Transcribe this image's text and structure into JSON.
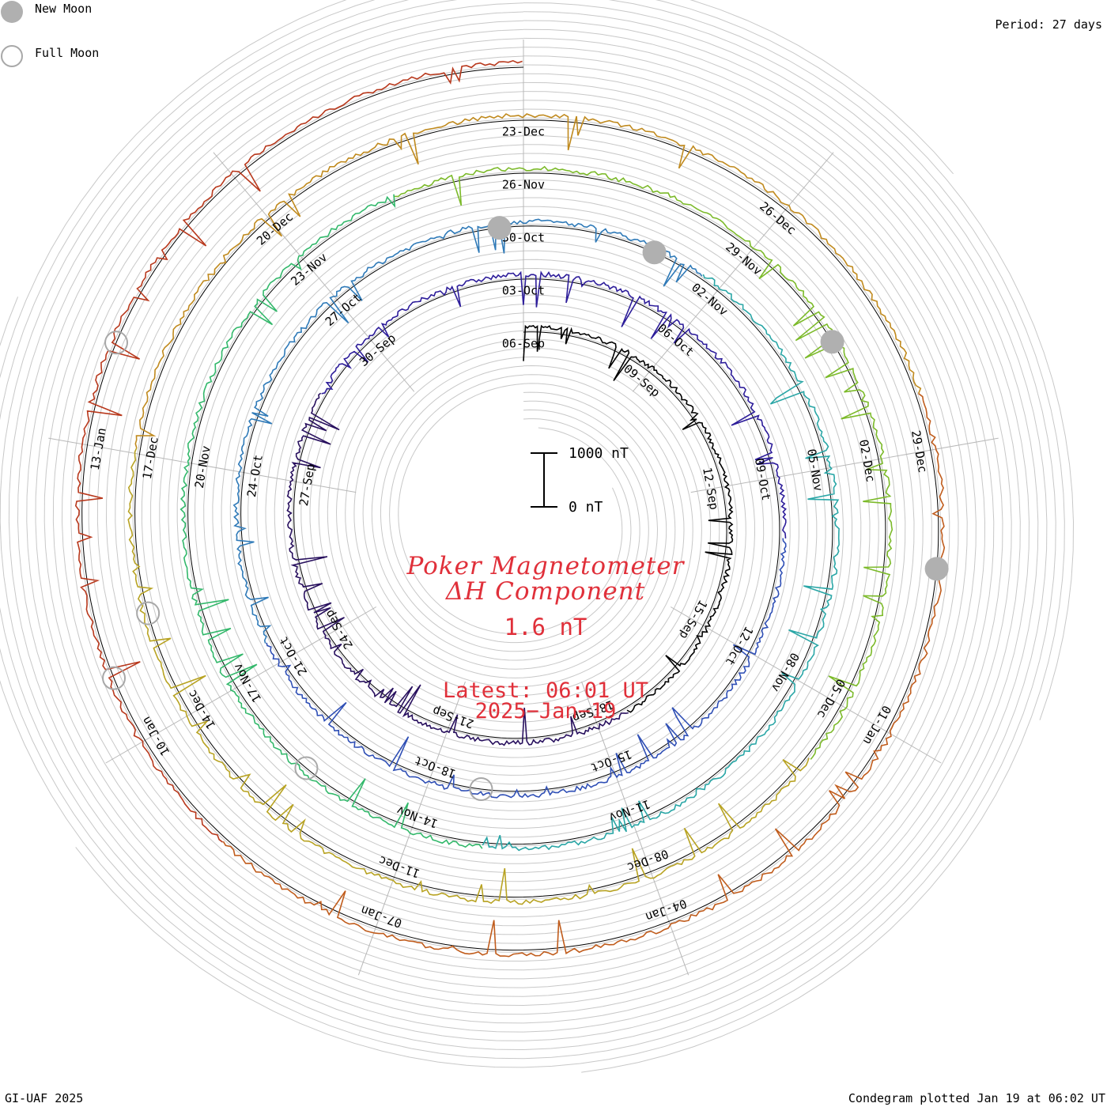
{
  "header": {
    "legend": [
      {
        "label": "New Moon",
        "icon": "new-moon-icon"
      },
      {
        "label": "Full Moon",
        "icon": "full-moon-icon"
      }
    ],
    "period": "Period: 27 days"
  },
  "center": {
    "title_line1": "Poker Magnetometer",
    "title_line2": "ΔH Component",
    "value": "1.6 nT",
    "latest_line1": "Latest: 06:01 UT",
    "latest_line2": "2025−Jan−19"
  },
  "scale": {
    "top_label": "1000 nT",
    "bottom_label": "0 nT"
  },
  "footer": {
    "left": "GI-UAF 2025",
    "right": "Condegram plotted Jan 19 at 06:02 UT"
  },
  "chart_data": {
    "type": "line",
    "title": "Poker Magnetometer ΔH Component",
    "subtitle": "Condegram, period 27 days",
    "unit": "nT",
    "scale_bar": [
      0,
      1000
    ],
    "colors": [
      "#000000",
      "#28105e",
      "#2d1d9a",
      "#2f4fb5",
      "#2f7ab8",
      "#2aa6a6",
      "#33b86b",
      "#7cba2a",
      "#b8a323",
      "#c08a1e",
      "#c05c1c",
      "#b8381c",
      "#b01c14"
    ],
    "date_labels": [
      {
        "text": "06-Sep",
        "ring": 0,
        "frac": 0.0
      },
      {
        "text": "09-Sep",
        "ring": 0,
        "frac": 0.111
      },
      {
        "text": "12-Sep",
        "ring": 0,
        "frac": 0.222
      },
      {
        "text": "15-Sep",
        "ring": 0,
        "frac": 0.333
      },
      {
        "text": "18-Sep",
        "ring": 0,
        "frac": 0.444
      },
      {
        "text": "21-Sep",
        "ring": 0,
        "frac": 0.555
      },
      {
        "text": "24-Sep",
        "ring": 0,
        "frac": 0.666
      },
      {
        "text": "27-Sep",
        "ring": 0,
        "frac": 0.777
      },
      {
        "text": "30-Sep",
        "ring": 0,
        "frac": 0.888
      },
      {
        "text": "03-Oct",
        "ring": 1,
        "frac": 0.0
      },
      {
        "text": "06-Oct",
        "ring": 1,
        "frac": 0.111
      },
      {
        "text": "09-Oct",
        "ring": 1,
        "frac": 0.222
      },
      {
        "text": "12-Oct",
        "ring": 1,
        "frac": 0.333
      },
      {
        "text": "15-Oct",
        "ring": 1,
        "frac": 0.444
      },
      {
        "text": "18-Oct",
        "ring": 1,
        "frac": 0.555
      },
      {
        "text": "21-Oct",
        "ring": 1,
        "frac": 0.666
      },
      {
        "text": "24-Oct",
        "ring": 1,
        "frac": 0.777
      },
      {
        "text": "27-Oct",
        "ring": 1,
        "frac": 0.888
      },
      {
        "text": "30-Oct",
        "ring": 2,
        "frac": 0.0
      },
      {
        "text": "02-Nov",
        "ring": 2,
        "frac": 0.111
      },
      {
        "text": "05-Nov",
        "ring": 2,
        "frac": 0.222
      },
      {
        "text": "08-Nov",
        "ring": 2,
        "frac": 0.333
      },
      {
        "text": "11-Nov",
        "ring": 2,
        "frac": 0.444
      },
      {
        "text": "14-Nov",
        "ring": 2,
        "frac": 0.555
      },
      {
        "text": "17-Nov",
        "ring": 2,
        "frac": 0.666
      },
      {
        "text": "20-Nov",
        "ring": 2,
        "frac": 0.777
      },
      {
        "text": "23-Nov",
        "ring": 2,
        "frac": 0.888
      },
      {
        "text": "26-Nov",
        "ring": 3,
        "frac": 0.0
      },
      {
        "text": "29-Nov",
        "ring": 3,
        "frac": 0.111
      },
      {
        "text": "02-Dec",
        "ring": 3,
        "frac": 0.222
      },
      {
        "text": "05-Dec",
        "ring": 3,
        "frac": 0.333
      },
      {
        "text": "08-Dec",
        "ring": 3,
        "frac": 0.444
      },
      {
        "text": "11-Dec",
        "ring": 3,
        "frac": 0.555
      },
      {
        "text": "14-Dec",
        "ring": 3,
        "frac": 0.666
      },
      {
        "text": "17-Dec",
        "ring": 3,
        "frac": 0.777
      },
      {
        "text": "20-Dec",
        "ring": 3,
        "frac": 0.888
      },
      {
        "text": "23-Dec",
        "ring": 4,
        "frac": 0.0
      },
      {
        "text": "26-Dec",
        "ring": 4,
        "frac": 0.111
      },
      {
        "text": "29-Dec",
        "ring": 4,
        "frac": 0.222
      },
      {
        "text": "01-Jan",
        "ring": 4,
        "frac": 0.333
      },
      {
        "text": "04-Jan",
        "ring": 4,
        "frac": 0.444
      },
      {
        "text": "07-Jan",
        "ring": 4,
        "frac": 0.555
      },
      {
        "text": "10-Jan",
        "ring": 4,
        "frac": 0.666
      },
      {
        "text": "13-Jan",
        "ring": 4,
        "frac": 0.777
      }
    ],
    "new_moons": [
      {
        "ring": 1,
        "frac": 0.987
      },
      {
        "ring": 2,
        "frac": 0.072
      },
      {
        "ring": 3,
        "frac": 0.166
      },
      {
        "ring": 4,
        "frac": 0.268
      }
    ],
    "full_moons": [
      {
        "ring": 1,
        "frac": 0.525
      },
      {
        "ring": 2,
        "frac": 0.615
      },
      {
        "ring": 3,
        "frac": 0.712
      },
      {
        "ring": 4,
        "frac": 0.816
      },
      {
        "ring": 4,
        "frac": 0.692
      }
    ]
  }
}
